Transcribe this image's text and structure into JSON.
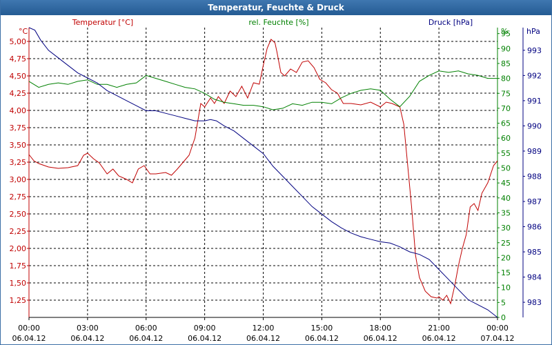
{
  "window": {
    "title": "Temperatur, Feuchte & Druck"
  },
  "chart_data": {
    "type": "line",
    "title": "Temperatur, Feuchte & Druck",
    "grid": true,
    "x_ticks": [
      {
        "time": "00:00",
        "date": "06.04.12"
      },
      {
        "time": "03:00",
        "date": "06.04.12"
      },
      {
        "time": "06:00",
        "date": "06.04.12"
      },
      {
        "time": "09:00",
        "date": "06.04.12"
      },
      {
        "time": "12:00",
        "date": "06.04.12"
      },
      {
        "time": "15:00",
        "date": "06.04.12"
      },
      {
        "time": "18:00",
        "date": "06.04.12"
      },
      {
        "time": "21:00",
        "date": "06.04.12"
      },
      {
        "time": "00:00",
        "date": "07.04.12"
      }
    ],
    "x_range_hours": [
      0,
      24
    ],
    "axes": {
      "temperature": {
        "unit": "°C",
        "color": "#c00000",
        "range": [
          1.0,
          5.2
        ],
        "position": "left",
        "ticks": [
          "1,25",
          "1,50",
          "1,75",
          "2,00",
          "2,25",
          "2,50",
          "2,75",
          "3,00",
          "3,25",
          "3,50",
          "3,75",
          "4,00",
          "4,25",
          "4,50",
          "4,75",
          "5,00"
        ]
      },
      "humidity": {
        "unit": "%",
        "color": "#008000",
        "range": [
          0,
          97
        ],
        "position": "right-inner",
        "ticks": [
          "0",
          "5",
          "10",
          "15",
          "20",
          "25",
          "30",
          "35",
          "40",
          "45",
          "50",
          "55",
          "60",
          "65",
          "70",
          "75",
          "80",
          "85",
          "90",
          "95"
        ]
      },
      "pressure": {
        "unit": "hPa",
        "color": "#000080",
        "range": [
          982.4,
          993.9
        ],
        "position": "right-outer",
        "ticks": [
          "983",
          "984",
          "985",
          "986",
          "987",
          "988",
          "989",
          "990",
          "991",
          "992",
          "993"
        ]
      }
    },
    "series": [
      {
        "name": "Temperatur [°C]",
        "axis": "temperature",
        "color": "#c00000",
        "x": [
          0,
          0.25,
          0.5,
          1,
          1.5,
          2,
          2.5,
          2.8,
          3,
          3.3,
          3.6,
          4,
          4.3,
          4.6,
          5,
          5.3,
          5.6,
          5.9,
          6.2,
          6.5,
          7,
          7.3,
          7.6,
          7.9,
          8.2,
          8.5,
          8.8,
          9,
          9.3,
          9.5,
          9.7,
          10,
          10.3,
          10.6,
          10.9,
          11.2,
          11.5,
          11.8,
          12,
          12.2,
          12.4,
          12.6,
          12.7,
          12.9,
          13.1,
          13.4,
          13.7,
          14,
          14.3,
          14.6,
          14.9,
          15.2,
          15.5,
          15.8,
          16.1,
          16.5,
          17,
          17.5,
          18,
          18.3,
          18.6,
          19,
          19.2,
          19.4,
          19.6,
          19.8,
          20,
          20.3,
          20.6,
          20.9,
          21,
          21.2,
          21.4,
          21.6,
          21.8,
          22,
          22.2,
          22.4,
          22.6,
          22.8,
          23,
          23.2,
          23.5,
          23.8,
          24
        ],
        "values": [
          3.36,
          3.27,
          3.23,
          3.18,
          3.16,
          3.17,
          3.2,
          3.35,
          3.38,
          3.3,
          3.24,
          3.08,
          3.15,
          3.05,
          3.0,
          2.95,
          3.15,
          3.2,
          3.08,
          3.08,
          3.1,
          3.06,
          3.15,
          3.25,
          3.35,
          3.6,
          4.1,
          4.05,
          4.18,
          4.1,
          4.2,
          4.1,
          4.28,
          4.2,
          4.35,
          4.18,
          4.4,
          4.38,
          4.65,
          4.9,
          5.03,
          4.98,
          4.85,
          4.55,
          4.5,
          4.6,
          4.55,
          4.7,
          4.72,
          4.62,
          4.45,
          4.4,
          4.3,
          4.25,
          4.1,
          4.1,
          4.08,
          4.12,
          4.05,
          4.12,
          4.1,
          4.05,
          3.8,
          3.2,
          2.6,
          1.9,
          1.58,
          1.38,
          1.3,
          1.28,
          1.3,
          1.25,
          1.32,
          1.2,
          1.45,
          1.75,
          2.0,
          2.2,
          2.6,
          2.65,
          2.55,
          2.8,
          2.95,
          3.2,
          3.27
        ]
      },
      {
        "name": "rel. Feuchte [%]",
        "axis": "humidity",
        "color": "#008000",
        "x": [
          0,
          0.5,
          1,
          1.5,
          2,
          2.5,
          3,
          3.5,
          4,
          4.5,
          5,
          5.5,
          6,
          6.5,
          7,
          7.5,
          8,
          8.5,
          9,
          9.5,
          10,
          10.5,
          11,
          11.5,
          12,
          12.5,
          13,
          13.5,
          14,
          14.5,
          15,
          15.5,
          16,
          16.5,
          17,
          17.5,
          18,
          18.5,
          19,
          19.5,
          20,
          20.5,
          21,
          21.5,
          22,
          22.5,
          23,
          23.5,
          24
        ],
        "values": [
          79,
          77,
          78,
          78.5,
          78,
          79,
          79.5,
          78,
          78,
          77,
          78,
          78.5,
          81,
          80,
          79,
          78,
          77,
          76.5,
          75,
          73,
          72,
          71.5,
          71,
          71,
          70.5,
          69.5,
          70,
          71.5,
          71,
          72,
          72,
          71.5,
          73.5,
          75,
          76,
          76.5,
          76,
          73,
          70.5,
          74,
          79,
          81,
          82.5,
          82,
          82.5,
          81.5,
          81,
          80,
          80
        ]
      },
      {
        "name": "Druck [hPa]",
        "axis": "pressure",
        "color": "#000080",
        "x": [
          0,
          0.3,
          0.6,
          1,
          1.5,
          2,
          2.5,
          3,
          3.5,
          4,
          4.5,
          5,
          5.5,
          6,
          6.5,
          7,
          7.5,
          8,
          8.5,
          9,
          9.3,
          9.6,
          10,
          10.5,
          11,
          11.5,
          12,
          12.5,
          13,
          13.5,
          14,
          14.5,
          15,
          15.5,
          16,
          16.5,
          17,
          17.5,
          18,
          18.5,
          19,
          19.5,
          20,
          20.5,
          21,
          21.5,
          22,
          22.5,
          23,
          23.5,
          24
        ],
        "values": [
          993.9,
          993.8,
          993.4,
          993.0,
          992.7,
          992.4,
          992.1,
          991.9,
          991.7,
          991.4,
          991.2,
          991.0,
          990.8,
          990.6,
          990.6,
          990.5,
          990.4,
          990.3,
          990.2,
          990.2,
          990.25,
          990.2,
          990.0,
          989.8,
          989.5,
          989.2,
          988.9,
          988.4,
          988.0,
          987.6,
          987.2,
          986.8,
          986.5,
          986.2,
          985.95,
          985.75,
          985.6,
          985.5,
          985.4,
          985.35,
          985.2,
          985.0,
          984.9,
          984.7,
          984.3,
          983.9,
          983.5,
          983.1,
          982.9,
          982.7,
          982.4
        ]
      }
    ]
  }
}
